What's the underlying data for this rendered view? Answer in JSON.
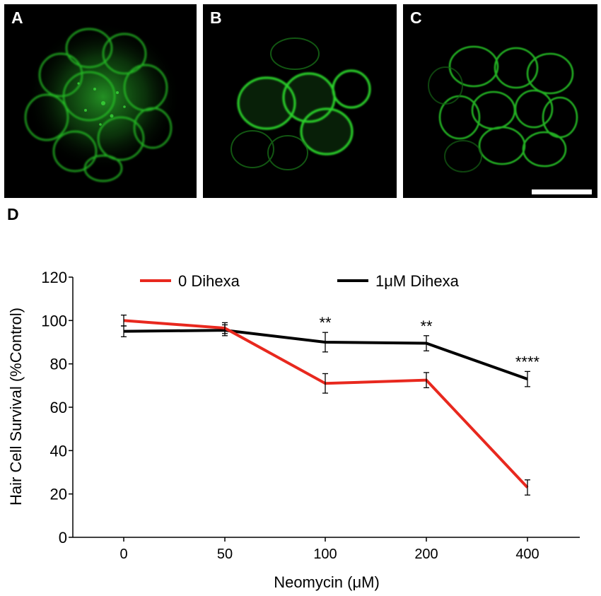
{
  "panels": [
    {
      "letter": "A"
    },
    {
      "letter": "B"
    },
    {
      "letter": "C"
    }
  ],
  "panel_d_letter": "D",
  "colors": {
    "background": "#000000",
    "stain": "#27c227",
    "series_0_dihexa": "#e8281e",
    "series_1uM_dihexa": "#000000"
  },
  "chart_data": {
    "type": "line",
    "title": "",
    "xlabel": "Neomycin (μM)",
    "ylabel": "Hair Cell Survival (%Control)",
    "categories": [
      "0",
      "50",
      "100",
      "200",
      "400"
    ],
    "ylim": [
      0,
      120
    ],
    "yticks": [
      "0",
      "20",
      "40",
      "60",
      "80",
      "100",
      "120"
    ],
    "grid": false,
    "legend_position": "top",
    "series": [
      {
        "name": "0 Dihexa",
        "color": "#e8281e",
        "values": [
          100,
          96.5,
          71,
          72.5,
          23
        ],
        "errors": [
          2.5,
          2.5,
          4.5,
          3.5,
          3.5
        ]
      },
      {
        "name": "1μM Dihexa",
        "color": "#000000",
        "values": [
          95,
          95.5,
          90,
          89.5,
          73
        ],
        "errors": [
          2.5,
          2.5,
          4.5,
          3.5,
          3.5
        ]
      }
    ],
    "annotations": [
      {
        "category": "100",
        "text": "**"
      },
      {
        "category": "200",
        "text": "**"
      },
      {
        "category": "400",
        "text": "****"
      }
    ]
  }
}
